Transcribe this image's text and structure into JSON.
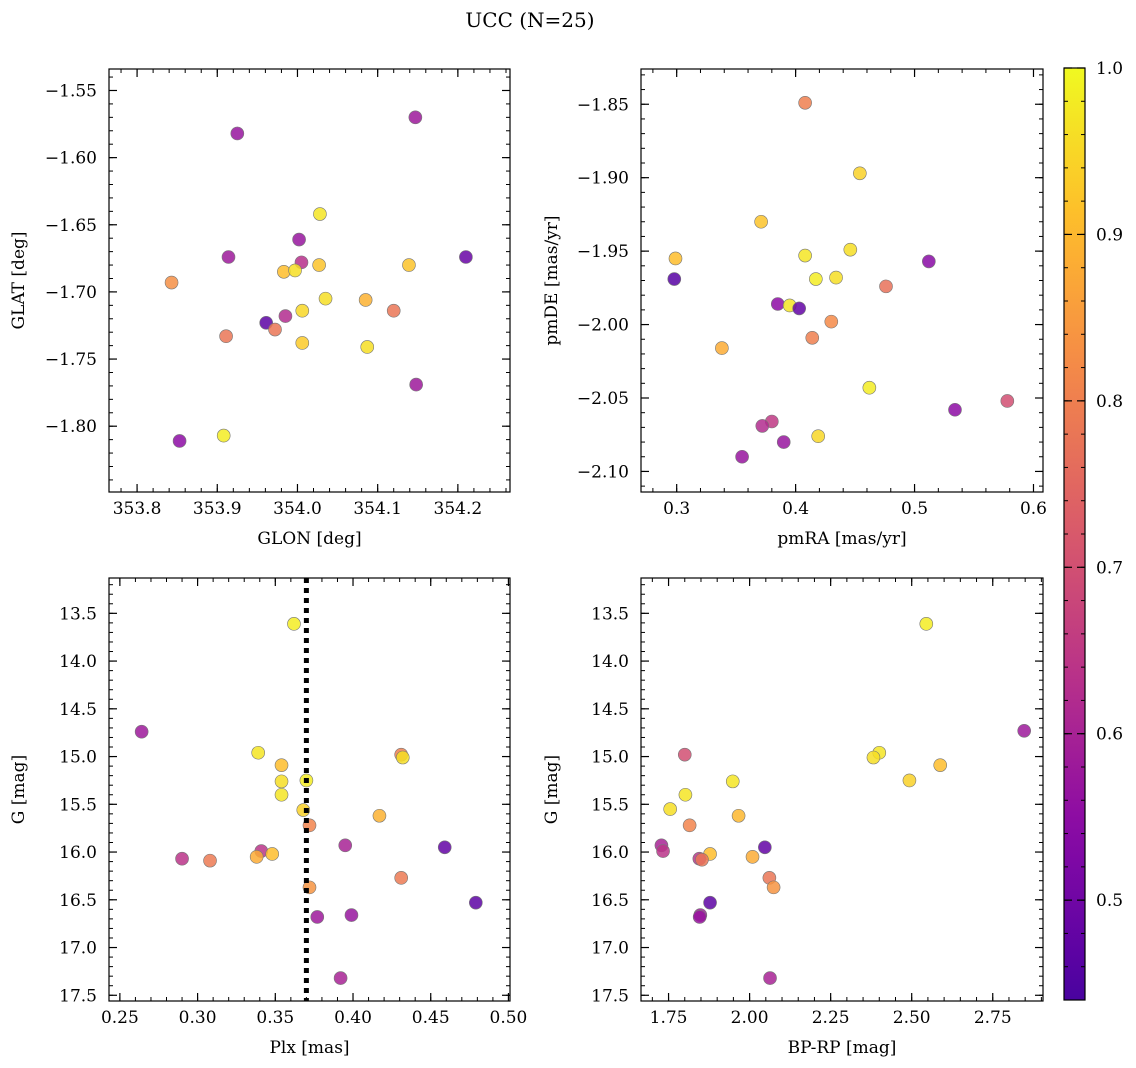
{
  "figure": {
    "title": "UCC (N=25)"
  },
  "colorbar": {
    "range": [
      0.44,
      1.0
    ],
    "ticks": [
      0.5,
      0.6,
      0.7,
      0.8,
      0.9,
      1.0
    ],
    "tick_labels": [
      "0.5",
      "0.6",
      "0.7",
      "0.8",
      "0.9",
      "1.0"
    ]
  },
  "chart_data": [
    {
      "type": "scatter",
      "name": "glon-glat",
      "xlabel": "GLON [deg]",
      "ylabel": "GLAT [deg]",
      "xlim": [
        353.765,
        354.265
      ],
      "ylim": [
        -1.849,
        -1.534
      ],
      "y_inverted": false,
      "xticks": [
        353.8,
        353.9,
        354.0,
        354.1,
        354.2
      ],
      "xtick_labels": [
        "353.8",
        "353.9",
        "354.0",
        "354.1",
        "354.2"
      ],
      "yticks": [
        -1.55,
        -1.6,
        -1.65,
        -1.7,
        -1.75,
        -1.8
      ],
      "ytick_labels": [
        "−1.55",
        "−1.60",
        "−1.65",
        "−1.70",
        "−1.75",
        "−1.80"
      ],
      "points": [
        {
          "x": 353.925,
          "y": -1.582,
          "c": 0.57
        },
        {
          "x": 354.147,
          "y": -1.57,
          "c": 0.58
        },
        {
          "x": 353.914,
          "y": -1.674,
          "c": 0.58
        },
        {
          "x": 354.002,
          "y": -1.661,
          "c": 0.57
        },
        {
          "x": 354.028,
          "y": -1.642,
          "c": 0.97
        },
        {
          "x": 354.21,
          "y": -1.674,
          "c": 0.49
        },
        {
          "x": 353.843,
          "y": -1.693,
          "c": 0.83
        },
        {
          "x": 354.005,
          "y": -1.678,
          "c": 0.63
        },
        {
          "x": 353.983,
          "y": -1.685,
          "c": 0.91
        },
        {
          "x": 353.997,
          "y": -1.684,
          "c": 0.96
        },
        {
          "x": 354.027,
          "y": -1.68,
          "c": 0.92
        },
        {
          "x": 354.139,
          "y": -1.68,
          "c": 0.92
        },
        {
          "x": 354.035,
          "y": -1.705,
          "c": 0.96
        },
        {
          "x": 354.085,
          "y": -1.706,
          "c": 0.89
        },
        {
          "x": 354.12,
          "y": -1.714,
          "c": 0.78
        },
        {
          "x": 354.006,
          "y": -1.714,
          "c": 0.95
        },
        {
          "x": 353.961,
          "y": -1.723,
          "c": 0.47
        },
        {
          "x": 353.985,
          "y": -1.718,
          "c": 0.62
        },
        {
          "x": 353.911,
          "y": -1.733,
          "c": 0.78
        },
        {
          "x": 353.972,
          "y": -1.728,
          "c": 0.78
        },
        {
          "x": 354.006,
          "y": -1.738,
          "c": 0.93
        },
        {
          "x": 354.087,
          "y": -1.741,
          "c": 0.96
        },
        {
          "x": 354.148,
          "y": -1.769,
          "c": 0.58
        },
        {
          "x": 353.908,
          "y": -1.807,
          "c": 0.98
        },
        {
          "x": 353.853,
          "y": -1.811,
          "c": 0.55
        }
      ]
    },
    {
      "type": "scatter",
      "name": "pmra-pmde",
      "xlabel": "pmRA [mas/yr]",
      "ylabel": "pmDE [mas/yr]",
      "xlim": [
        0.27,
        0.608
      ],
      "ylim": [
        -2.114,
        -1.826
      ],
      "y_inverted": false,
      "xticks": [
        0.3,
        0.4,
        0.5,
        0.6
      ],
      "xtick_labels": [
        "0.3",
        "0.4",
        "0.5",
        "0.6"
      ],
      "yticks": [
        -1.85,
        -1.9,
        -1.95,
        -2.0,
        -2.05,
        -2.1
      ],
      "ytick_labels": [
        "−1.85",
        "−1.90",
        "−1.95",
        "−2.00",
        "−2.05",
        "−2.10"
      ],
      "points": [
        {
          "x": 0.408,
          "y": -1.849,
          "c": 0.8
        },
        {
          "x": 0.454,
          "y": -1.897,
          "c": 0.94
        },
        {
          "x": 0.371,
          "y": -1.93,
          "c": 0.92
        },
        {
          "x": 0.446,
          "y": -1.949,
          "c": 0.96
        },
        {
          "x": 0.408,
          "y": -1.953,
          "c": 0.97
        },
        {
          "x": 0.299,
          "y": -1.955,
          "c": 0.91
        },
        {
          "x": 0.512,
          "y": -1.957,
          "c": 0.54
        },
        {
          "x": 0.298,
          "y": -1.969,
          "c": 0.46
        },
        {
          "x": 0.417,
          "y": -1.969,
          "c": 0.98
        },
        {
          "x": 0.434,
          "y": -1.968,
          "c": 0.96
        },
        {
          "x": 0.476,
          "y": -1.974,
          "c": 0.77
        },
        {
          "x": 0.385,
          "y": -1.986,
          "c": 0.55
        },
        {
          "x": 0.395,
          "y": -1.987,
          "c": 0.97
        },
        {
          "x": 0.403,
          "y": -1.989,
          "c": 0.48
        },
        {
          "x": 0.43,
          "y": -1.998,
          "c": 0.82
        },
        {
          "x": 0.414,
          "y": -2.009,
          "c": 0.8
        },
        {
          "x": 0.338,
          "y": -2.016,
          "c": 0.88
        },
        {
          "x": 0.462,
          "y": -2.043,
          "c": 0.98
        },
        {
          "x": 0.578,
          "y": -2.052,
          "c": 0.7
        },
        {
          "x": 0.534,
          "y": -2.058,
          "c": 0.55
        },
        {
          "x": 0.38,
          "y": -2.066,
          "c": 0.65
        },
        {
          "x": 0.372,
          "y": -2.069,
          "c": 0.62
        },
        {
          "x": 0.419,
          "y": -2.076,
          "c": 0.95
        },
        {
          "x": 0.39,
          "y": -2.08,
          "c": 0.57
        },
        {
          "x": 0.355,
          "y": -2.09,
          "c": 0.57
        }
      ]
    },
    {
      "type": "scatter",
      "name": "plx-g",
      "xlabel": "Plx [mas]",
      "ylabel": "G [mag]",
      "xlim": [
        0.243,
        0.501
      ],
      "ylim": [
        13.13,
        17.56
      ],
      "y_inverted": true,
      "vline": 0.37,
      "xticks": [
        0.25,
        0.3,
        0.35,
        0.4,
        0.45,
        0.5
      ],
      "xtick_labels": [
        "0.25",
        "0.30",
        "0.35",
        "0.40",
        "0.45",
        "0.50"
      ],
      "yticks": [
        13.5,
        14.0,
        14.5,
        15.0,
        15.5,
        16.0,
        16.5,
        17.0,
        17.5
      ],
      "ytick_labels": [
        "13.5",
        "14.0",
        "14.5",
        "15.0",
        "15.5",
        "16.0",
        "16.5",
        "17.0",
        "17.5"
      ],
      "points": [
        {
          "x": 0.362,
          "y": 13.61,
          "c": 0.98
        },
        {
          "x": 0.264,
          "y": 14.74,
          "c": 0.58
        },
        {
          "x": 0.339,
          "y": 14.96,
          "c": 0.97
        },
        {
          "x": 0.431,
          "y": 14.98,
          "c": 0.8
        },
        {
          "x": 0.432,
          "y": 15.01,
          "c": 0.96
        },
        {
          "x": 0.354,
          "y": 15.09,
          "c": 0.91
        },
        {
          "x": 0.37,
          "y": 15.25,
          "c": 0.98
        },
        {
          "x": 0.354,
          "y": 15.26,
          "c": 0.96
        },
        {
          "x": 0.354,
          "y": 15.4,
          "c": 0.97
        },
        {
          "x": 0.368,
          "y": 15.56,
          "c": 0.94
        },
        {
          "x": 0.417,
          "y": 15.62,
          "c": 0.89
        },
        {
          "x": 0.372,
          "y": 15.72,
          "c": 0.81
        },
        {
          "x": 0.395,
          "y": 15.93,
          "c": 0.6
        },
        {
          "x": 0.459,
          "y": 15.95,
          "c": 0.48
        },
        {
          "x": 0.341,
          "y": 15.99,
          "c": 0.64
        },
        {
          "x": 0.348,
          "y": 16.02,
          "c": 0.91
        },
        {
          "x": 0.338,
          "y": 16.05,
          "c": 0.88
        },
        {
          "x": 0.29,
          "y": 16.07,
          "c": 0.64
        },
        {
          "x": 0.308,
          "y": 16.09,
          "c": 0.79
        },
        {
          "x": 0.431,
          "y": 16.27,
          "c": 0.79
        },
        {
          "x": 0.372,
          "y": 16.37,
          "c": 0.84
        },
        {
          "x": 0.479,
          "y": 16.53,
          "c": 0.47
        },
        {
          "x": 0.377,
          "y": 16.68,
          "c": 0.58
        },
        {
          "x": 0.399,
          "y": 16.66,
          "c": 0.57
        },
        {
          "x": 0.392,
          "y": 17.32,
          "c": 0.6
        }
      ]
    },
    {
      "type": "scatter",
      "name": "bprp-g",
      "xlabel": "BP-RP [mag]",
      "ylabel": "G [mag]",
      "xlim": [
        1.665,
        2.905
      ],
      "ylim": [
        13.13,
        17.56
      ],
      "y_inverted": true,
      "xticks": [
        1.75,
        2.0,
        2.25,
        2.5,
        2.75
      ],
      "xtick_labels": [
        "1.75",
        "2.00",
        "2.25",
        "2.50",
        "2.75"
      ],
      "yticks": [
        13.5,
        14.0,
        14.5,
        15.0,
        15.5,
        16.0,
        16.5,
        17.0,
        17.5
      ],
      "ytick_labels": [
        "13.5",
        "14.0",
        "14.5",
        "15.0",
        "15.5",
        "16.0",
        "16.5",
        "17.0",
        "17.5"
      ],
      "points": [
        {
          "x": 2.545,
          "y": 13.61,
          "c": 0.98
        },
        {
          "x": 2.847,
          "y": 14.73,
          "c": 0.58
        },
        {
          "x": 2.4,
          "y": 14.96,
          "c": 0.97
        },
        {
          "x": 2.382,
          "y": 15.01,
          "c": 0.96
        },
        {
          "x": 1.8,
          "y": 14.98,
          "c": 0.7
        },
        {
          "x": 2.588,
          "y": 15.09,
          "c": 0.91
        },
        {
          "x": 1.948,
          "y": 15.26,
          "c": 0.97
        },
        {
          "x": 2.493,
          "y": 15.25,
          "c": 0.94
        },
        {
          "x": 1.802,
          "y": 15.4,
          "c": 0.97
        },
        {
          "x": 1.755,
          "y": 15.55,
          "c": 0.96
        },
        {
          "x": 1.966,
          "y": 15.62,
          "c": 0.9
        },
        {
          "x": 1.815,
          "y": 15.72,
          "c": 0.81
        },
        {
          "x": 1.728,
          "y": 15.93,
          "c": 0.6
        },
        {
          "x": 2.047,
          "y": 15.95,
          "c": 0.48
        },
        {
          "x": 1.733,
          "y": 15.99,
          "c": 0.64
        },
        {
          "x": 1.878,
          "y": 16.02,
          "c": 0.91
        },
        {
          "x": 2.009,
          "y": 16.05,
          "c": 0.88
        },
        {
          "x": 1.845,
          "y": 16.07,
          "c": 0.64
        },
        {
          "x": 1.853,
          "y": 16.08,
          "c": 0.78
        },
        {
          "x": 2.061,
          "y": 16.27,
          "c": 0.78
        },
        {
          "x": 2.074,
          "y": 16.37,
          "c": 0.84
        },
        {
          "x": 1.878,
          "y": 16.53,
          "c": 0.47
        },
        {
          "x": 1.848,
          "y": 16.66,
          "c": 0.58
        },
        {
          "x": 1.846,
          "y": 16.68,
          "c": 0.57
        },
        {
          "x": 2.063,
          "y": 17.32,
          "c": 0.6
        }
      ]
    }
  ]
}
